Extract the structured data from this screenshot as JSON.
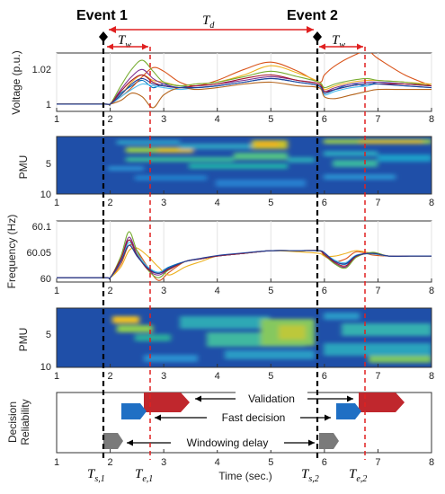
{
  "events": [
    {
      "label": "Event 1",
      "start_time": 1.93,
      "end_time": 2.78,
      "ts_symbol": "T",
      "ts_sub": "s,1",
      "te_symbol": "T",
      "te_sub": "e,1"
    },
    {
      "label": "Event 2",
      "start_time": 5.93,
      "end_time": 6.78,
      "ts_symbol": "T",
      "ts_sub": "s,2",
      "te_symbol": "T",
      "te_sub": "e,2"
    }
  ],
  "td_label": "T",
  "td_sub": "d",
  "tw_label": "T",
  "tw_sub": "w",
  "x_axis": {
    "label": "Time (sec.)",
    "ticks": [
      "1",
      "2",
      "3",
      "4",
      "5",
      "6",
      "7",
      "8"
    ],
    "min": 1,
    "max": 8
  },
  "chart_data": [
    {
      "type": "line",
      "ylabel": "Voltage (p.u.)",
      "yticks": [
        "1",
        "1.02"
      ],
      "ylim": [
        0.996,
        1.028
      ],
      "x": [
        1,
        1.9,
        2,
        2.2,
        2.4,
        2.6,
        2.8,
        3,
        3.3,
        3.6,
        4,
        4.5,
        5,
        5.5,
        5.9,
        6,
        6.2,
        6.5,
        6.8,
        7,
        7.5,
        8
      ],
      "series": [
        {
          "color": "#0072bd",
          "values": [
            1,
            1,
            1,
            1.006,
            1.01,
            1.013,
            1.009,
            1.011,
            1.01,
            1.009,
            1.01,
            1.012,
            1.014,
            1.012,
            1.01,
            1.006,
            1.008,
            1.011,
            1.01,
            1.012,
            1.011,
            1.01
          ]
        },
        {
          "color": "#d95319",
          "values": [
            1,
            1,
            1,
            1.004,
            1.009,
            1.015,
            1.02,
            1.018,
            1.012,
            1.01,
            1.013,
            1.019,
            1.023,
            1.018,
            1.012,
            1.016,
            1.021,
            1.026,
            1.029,
            1.025,
            1.016,
            1.01
          ]
        },
        {
          "color": "#edb120",
          "values": [
            1,
            1,
            1,
            1.005,
            1.012,
            1.016,
            1.013,
            1.012,
            1.01,
            1.011,
            1.012,
            1.016,
            1.021,
            1.017,
            1.012,
            1.008,
            1.01,
            1.012,
            1.013,
            1.013,
            1.012,
            1.011
          ]
        },
        {
          "color": "#7e2f8e",
          "values": [
            1,
            1,
            1,
            1.008,
            1.015,
            1.019,
            1.014,
            1.011,
            1.009,
            1.01,
            1.011,
            1.013,
            1.015,
            1.013,
            1.011,
            1.007,
            1.009,
            1.011,
            1.012,
            1.012,
            1.011,
            1.01
          ]
        },
        {
          "color": "#77ac30",
          "values": [
            1,
            1,
            1,
            1.01,
            1.019,
            1.024,
            1.018,
            1.012,
            1.01,
            1.011,
            1.012,
            1.015,
            1.018,
            1.015,
            1.012,
            1.009,
            1.011,
            1.013,
            1.014,
            1.013,
            1.012,
            1.01
          ]
        },
        {
          "color": "#4dbeee",
          "values": [
            1,
            1,
            1,
            1.004,
            1.008,
            1.011,
            1.01,
            1.009,
            1.008,
            1.009,
            1.01,
            1.012,
            1.014,
            1.012,
            1.01,
            1.005,
            1.007,
            1.009,
            1.01,
            1.011,
            1.01,
            1.009
          ]
        },
        {
          "color": "#a2142f",
          "values": [
            1,
            1,
            1,
            1.007,
            1.013,
            1.016,
            1.012,
            1.01,
            1.009,
            1.01,
            1.011,
            1.014,
            1.016,
            1.013,
            1.011,
            1.007,
            1.008,
            1.01,
            1.011,
            1.011,
            1.011,
            1.01
          ]
        },
        {
          "color": "#b5651d",
          "values": [
            1,
            1,
            1,
            1.002,
            1.006,
            1.004,
            0.998,
            1.005,
            1.009,
            1.008,
            1.009,
            1.011,
            1.012,
            1.01,
            1.009,
            1.004,
            1.003,
            1.005,
            1.007,
            1.008,
            1.008,
            1.008
          ]
        },
        {
          "color": "#1f3f99",
          "values": [
            1,
            1,
            1,
            1.005,
            1.011,
            1.014,
            1.011,
            1.01,
            1.009,
            1.009,
            1.01,
            1.012,
            1.014,
            1.012,
            1.01,
            1.006,
            1.008,
            1.01,
            1.011,
            1.011,
            1.01,
            1.009
          ]
        }
      ]
    },
    {
      "type": "heatmap",
      "ylabel": "PMU",
      "yticks": [
        "5",
        "10"
      ],
      "rows": 10,
      "baseline_color": "#1f4fa8"
    },
    {
      "type": "line",
      "ylabel": "Frequency (Hz)",
      "yticks": [
        "60",
        "60.05",
        "60.1"
      ],
      "ylim": [
        59.992,
        60.105
      ],
      "x": [
        1,
        1.9,
        2,
        2.2,
        2.35,
        2.5,
        2.7,
        2.9,
        3.1,
        3.4,
        3.7,
        4,
        4.5,
        5,
        5.5,
        5.9,
        6,
        6.2,
        6.4,
        6.6,
        6.9,
        7.2,
        7.6,
        8
      ],
      "series": [
        {
          "color": "#0072bd",
          "values": [
            60,
            60,
            60,
            60.03,
            60.07,
            60.04,
            60.02,
            60.01,
            60.02,
            60.03,
            60.035,
            60.04,
            60.045,
            60.05,
            60.05,
            60.05,
            60.045,
            60.03,
            60.025,
            60.04,
            60.045,
            60.04,
            60.04,
            60.04
          ]
        },
        {
          "color": "#d95319",
          "values": [
            60,
            60,
            60,
            60.025,
            60.06,
            60.05,
            60.02,
            59.995,
            60.01,
            60.03,
            60.035,
            60.04,
            60.045,
            60.05,
            60.05,
            60.05,
            60.04,
            60.03,
            60.035,
            60.048,
            60.042,
            60.04,
            60.04,
            60.04
          ]
        },
        {
          "color": "#edb120",
          "values": [
            60,
            60,
            60,
            60.02,
            60.05,
            60.055,
            60.04,
            60.02,
            60.005,
            60.02,
            60.03,
            60.04,
            60.045,
            60.05,
            60.048,
            60.045,
            60.04,
            60.04,
            60.045,
            60.05,
            60.045,
            60.04,
            60.04,
            60.04
          ]
        },
        {
          "color": "#7e2f8e",
          "values": [
            60,
            60,
            60,
            60.035,
            60.075,
            60.045,
            60.015,
            60.005,
            60.015,
            60.03,
            60.035,
            60.04,
            60.045,
            60.05,
            60.05,
            60.05,
            60.044,
            60.026,
            60.02,
            60.04,
            60.046,
            60.04,
            60.04,
            60.04
          ]
        },
        {
          "color": "#77ac30",
          "values": [
            60,
            60,
            60,
            60.04,
            60.085,
            60.05,
            60.015,
            60.0,
            60.015,
            60.03,
            60.035,
            60.04,
            60.045,
            60.05,
            60.05,
            60.05,
            60.042,
            60.025,
            60.018,
            60.038,
            60.047,
            60.04,
            60.04,
            60.04
          ]
        },
        {
          "color": "#4dbeee",
          "values": [
            60,
            60,
            60,
            60.03,
            60.065,
            60.045,
            60.02,
            60.01,
            60.018,
            60.03,
            60.035,
            60.04,
            60.045,
            60.05,
            60.05,
            60.05,
            60.045,
            60.032,
            60.028,
            60.042,
            60.044,
            60.04,
            60.04,
            60.04
          ]
        },
        {
          "color": "#a2142f",
          "values": [
            60,
            60,
            60,
            60.035,
            60.07,
            60.042,
            60.016,
            60.008,
            60.016,
            60.03,
            60.035,
            60.04,
            60.045,
            60.05,
            60.05,
            60.05,
            60.043,
            60.028,
            60.022,
            60.04,
            60.045,
            60.04,
            60.04,
            60.04
          ]
        },
        {
          "color": "#1f3f99",
          "values": [
            60,
            60,
            60,
            60.03,
            60.06,
            60.04,
            60.018,
            60.008,
            60.018,
            60.03,
            60.036,
            60.041,
            60.046,
            60.05,
            60.05,
            60.05,
            60.046,
            60.03,
            60.026,
            60.041,
            60.045,
            60.04,
            60.04,
            60.04
          ]
        }
      ]
    },
    {
      "type": "heatmap",
      "ylabel": "PMU",
      "yticks": [
        "5",
        "10"
      ],
      "rows": 10,
      "baseline_color": "#1f4fa8"
    }
  ],
  "decision": {
    "ylabel_line1": "Decision",
    "ylabel_line2": "Reliability",
    "validation_label": "Validation",
    "fast_decision_label": "Fast decision",
    "windowing_delay_label": "Windowing delay",
    "colors": {
      "validation": "#c0272d",
      "fast": "#1f6fc4",
      "window": "#7a7a7a",
      "event_start": "#000000",
      "event_end": "#e02020"
    }
  }
}
